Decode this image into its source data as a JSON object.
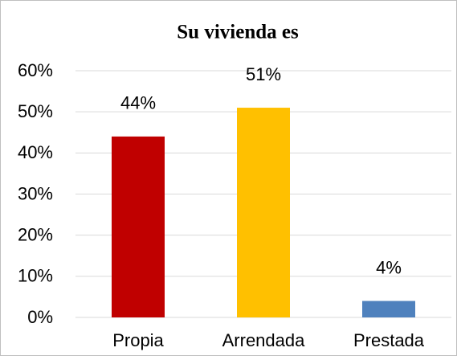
{
  "chart_data": {
    "type": "bar",
    "title": "Su vivienda es",
    "categories": [
      "Propia",
      "Arrendada",
      "Prestada"
    ],
    "values": [
      44,
      51,
      4
    ],
    "value_labels": [
      "44%",
      "51%",
      "4%"
    ],
    "colors": [
      "#c00000",
      "#ffc000",
      "#4f81bd"
    ],
    "ylim": [
      0,
      60
    ],
    "yticks": [
      {
        "value": 0,
        "label": "0%"
      },
      {
        "value": 10,
        "label": "10%"
      },
      {
        "value": 20,
        "label": "20%"
      },
      {
        "value": 30,
        "label": "30%"
      },
      {
        "value": 40,
        "label": "40%"
      },
      {
        "value": 50,
        "label": "50%"
      },
      {
        "value": 60,
        "label": "60%"
      }
    ],
    "grid": true
  }
}
